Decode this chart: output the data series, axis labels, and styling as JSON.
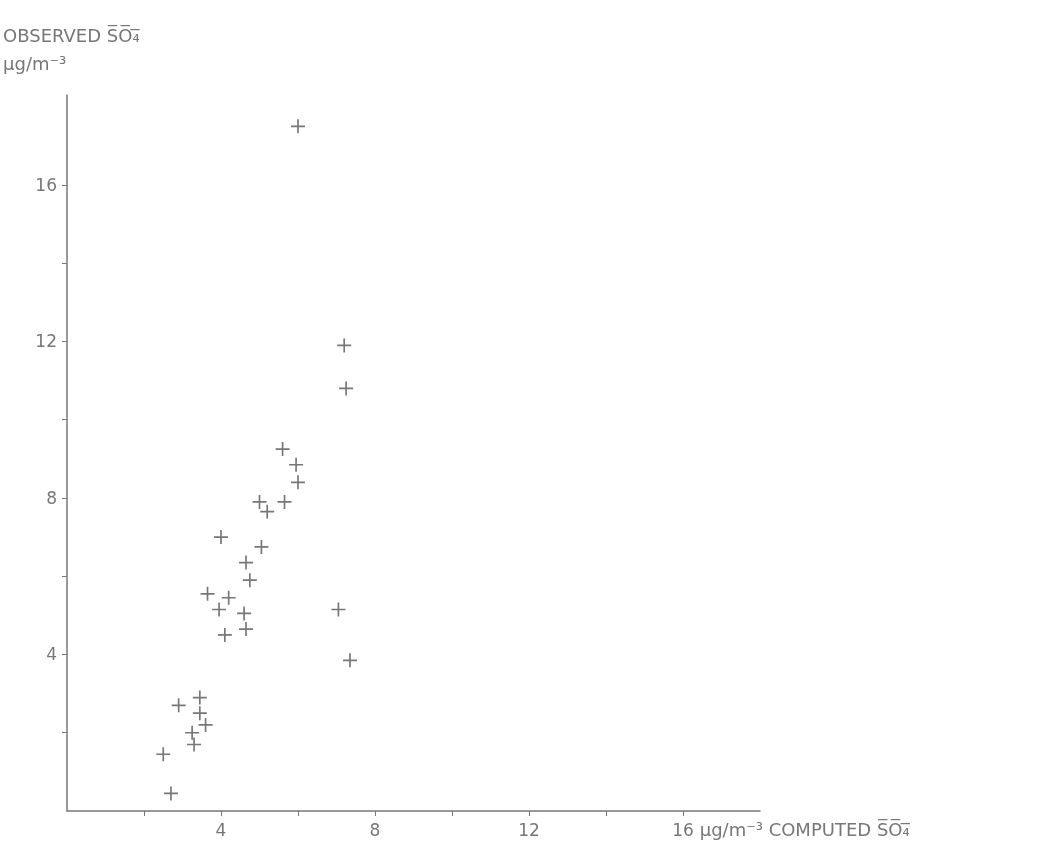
{
  "chart_data": {
    "type": "scatter",
    "xlabel": "μg/m⁻³ COMPUTED S̅O̅₄̅",
    "ylabel": "OBSERVED S̅O̅₄̅\nμg/m⁻³",
    "x": [
      6.0,
      7.2,
      7.25,
      5.6,
      5.95,
      6.0,
      5.0,
      5.65,
      5.2,
      4.0,
      5.05,
      4.65,
      4.75,
      3.65,
      4.2,
      3.95,
      4.6,
      4.65,
      4.1,
      7.05,
      7.35,
      2.9,
      3.45,
      3.45,
      3.6,
      3.25,
      3.3,
      2.5,
      2.7
    ],
    "values": [
      17.5,
      11.9,
      10.8,
      9.25,
      8.85,
      8.4,
      7.9,
      7.9,
      7.65,
      7.0,
      6.75,
      6.35,
      5.9,
      5.55,
      5.45,
      5.15,
      5.05,
      4.65,
      4.5,
      5.15,
      3.85,
      2.7,
      2.9,
      2.5,
      2.2,
      2.0,
      1.7,
      1.45,
      0.45
    ],
    "color": "#555555",
    "marker": "cross",
    "xlim": [
      0,
      18
    ],
    "ylim": [
      0,
      18.3
    ],
    "xticks": [
      {
        "value": 2,
        "label": null
      },
      4,
      {
        "value": 6,
        "label": null
      },
      8,
      {
        "value": 10,
        "label": null
      },
      12,
      {
        "value": 14,
        "label": null
      },
      16
    ],
    "yticks": [
      {
        "value": 2,
        "label": null
      },
      4,
      {
        "value": 6,
        "label": null
      },
      8,
      {
        "value": 10,
        "label": null
      },
      12,
      {
        "value": 14,
        "label": null
      },
      16
    ],
    "grid": false
  }
}
